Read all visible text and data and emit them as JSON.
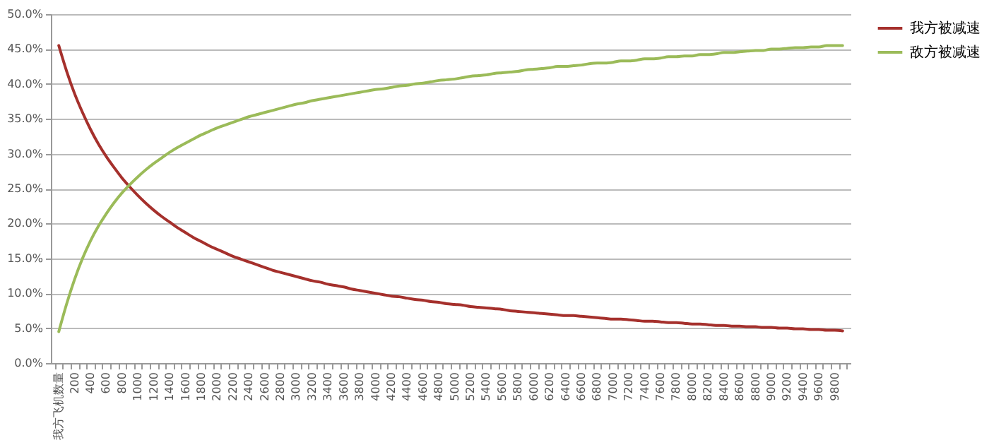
{
  "chart_data": {
    "type": "line",
    "categories": [
      "我方飞机数量",
      null,
      "200",
      null,
      "400",
      null,
      "600",
      null,
      "800",
      null,
      "1000",
      null,
      "1200",
      null,
      "1400",
      null,
      "1600",
      null,
      "1800",
      null,
      "2000",
      null,
      "2200",
      null,
      "2400",
      null,
      "2600",
      null,
      "2800",
      null,
      "3000",
      null,
      "3200",
      null,
      "3400",
      null,
      "3600",
      null,
      "3800",
      null,
      "4000",
      null,
      "4200",
      null,
      "4400",
      null,
      "4600",
      null,
      "4800",
      null,
      "5000",
      null,
      "5200",
      null,
      "5400",
      null,
      "5600",
      null,
      "5800",
      null,
      "6000",
      null,
      "6200",
      null,
      "6400",
      null,
      "6600",
      null,
      "6800",
      null,
      "7000",
      null,
      "7200",
      null,
      "7400",
      null,
      "7600",
      null,
      "7800",
      null,
      "8000",
      null,
      "8200",
      null,
      "8400",
      null,
      "8600",
      null,
      "8800",
      null,
      "9000",
      null,
      "9200",
      null,
      "9400",
      null,
      "9600",
      null,
      "9800",
      null
    ],
    "series": [
      {
        "name": "我方被减速",
        "color": "#a5302c",
        "values": [
          0.455,
          0.418,
          0.386,
          0.359,
          0.335,
          0.314,
          0.296,
          0.28,
          0.265,
          0.252,
          0.24,
          0.229,
          0.219,
          0.21,
          0.202,
          0.194,
          0.187,
          0.18,
          0.174,
          0.168,
          0.163,
          0.158,
          0.153,
          0.149,
          0.145,
          0.141,
          0.137,
          0.133,
          0.13,
          0.127,
          0.124,
          0.121,
          0.118,
          0.116,
          0.113,
          0.111,
          0.109,
          0.106,
          0.104,
          0.102,
          0.1,
          0.098,
          0.096,
          0.095,
          0.093,
          0.091,
          0.09,
          0.088,
          0.087,
          0.085,
          0.084,
          0.083,
          0.081,
          0.08,
          0.079,
          0.078,
          0.077,
          0.075,
          0.074,
          0.073,
          0.072,
          0.071,
          0.07,
          0.069,
          0.068,
          0.068,
          0.067,
          0.066,
          0.065,
          0.064,
          0.063,
          0.063,
          0.062,
          0.061,
          0.06,
          0.06,
          0.059,
          0.058,
          0.058,
          0.057,
          0.056,
          0.056,
          0.055,
          0.054,
          0.054,
          0.053,
          0.053,
          0.052,
          0.052,
          0.051,
          0.051,
          0.05,
          0.05,
          0.049,
          0.049,
          0.048,
          0.048,
          0.047,
          0.047,
          0.046
        ]
      },
      {
        "name": "敌方被减速",
        "color": "#9bbb59",
        "values": [
          0.045,
          0.085,
          0.12,
          0.15,
          0.175,
          0.196,
          0.214,
          0.23,
          0.244,
          0.256,
          0.267,
          0.277,
          0.286,
          0.294,
          0.302,
          0.309,
          0.315,
          0.321,
          0.327,
          0.332,
          0.337,
          0.341,
          0.345,
          0.349,
          0.353,
          0.356,
          0.359,
          0.362,
          0.365,
          0.368,
          0.371,
          0.373,
          0.376,
          0.378,
          0.38,
          0.382,
          0.384,
          0.386,
          0.388,
          0.39,
          0.392,
          0.393,
          0.395,
          0.397,
          0.398,
          0.4,
          0.401,
          0.403,
          0.405,
          0.406,
          0.407,
          0.409,
          0.411,
          0.412,
          0.413,
          0.415,
          0.416,
          0.417,
          0.418,
          0.42,
          0.421,
          0.422,
          0.423,
          0.425,
          0.425,
          0.426,
          0.427,
          0.429,
          0.43,
          0.43,
          0.431,
          0.433,
          0.433,
          0.434,
          0.436,
          0.436,
          0.437,
          0.439,
          0.439,
          0.44,
          0.44,
          0.442,
          0.442,
          0.443,
          0.445,
          0.445,
          0.446,
          0.447,
          0.448,
          0.448,
          0.45,
          0.45,
          0.451,
          0.452,
          0.452,
          0.453,
          0.453,
          0.455,
          0.455,
          0.455
        ]
      }
    ],
    "ylim": [
      0,
      0.5
    ],
    "yticks": [
      {
        "value": 0,
        "label": "0.0%"
      },
      {
        "value": 0.05,
        "label": "5.0%"
      },
      {
        "value": 0.1,
        "label": "10.0%"
      },
      {
        "value": 0.15,
        "label": "15.0%"
      },
      {
        "value": 0.2,
        "label": "20.0%"
      },
      {
        "value": 0.25,
        "label": "25.0%"
      },
      {
        "value": 0.3,
        "label": "30.0%"
      },
      {
        "value": 0.35,
        "label": "35.0%"
      },
      {
        "value": 0.4,
        "label": "40.0%"
      },
      {
        "value": 0.45,
        "label": "45.0%"
      },
      {
        "value": 0.5,
        "label": "50.0%"
      }
    ],
    "grid": "y",
    "legend": "right",
    "marker": "none",
    "line_style": "solid"
  }
}
